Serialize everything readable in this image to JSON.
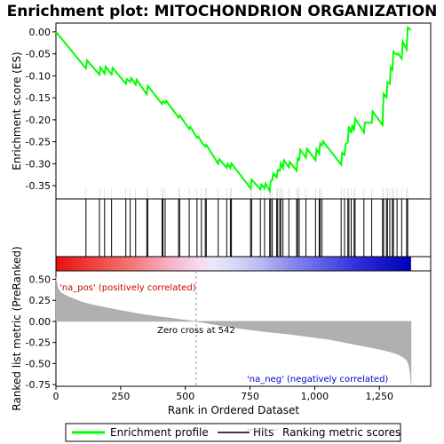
{
  "chart_data": {
    "type": "line",
    "title": "Enrichment plot: MITOCHONDRION ORGANIZATION",
    "top_panel": {
      "ylabel": "Enrichment score (ES)",
      "ylim": [
        -0.38,
        0.02
      ],
      "yticks": [
        "0.00",
        "-0.05",
        "-0.10",
        "-0.15",
        "-0.20",
        "-0.25",
        "-0.30",
        "-0.35"
      ],
      "ytick_values": [
        0.0,
        -0.05,
        -0.1,
        -0.15,
        -0.2,
        -0.25,
        -0.3,
        -0.35
      ],
      "series": [
        {
          "name": "Enrichment profile",
          "color": "#00ff00",
          "x": [
            0,
            116,
            120,
            168,
            172,
            188,
            192,
            215,
            219,
            270,
            274,
            287,
            291,
            308,
            312,
            351,
            355,
            410,
            414,
            422,
            426,
            474,
            478,
            515,
            519,
            545,
            550,
            562,
            566,
            577,
            581,
            627,
            631,
            660,
            664,
            674,
            678,
            752,
            756,
            790,
            794,
            806,
            810,
            826,
            830,
            836,
            840,
            853,
            857,
            865,
            869,
            877,
            881,
            900,
            904,
            930,
            934,
            940,
            944,
            966,
            970,
            1003,
            1007,
            1017,
            1021,
            1028,
            1032,
            1102,
            1106,
            1115,
            1119,
            1128,
            1132,
            1141,
            1145,
            1152,
            1156,
            1190,
            1194,
            1220,
            1224,
            1262,
            1266,
            1277,
            1281,
            1290,
            1294,
            1300,
            1304,
            1318,
            1322,
            1336,
            1340,
            1355,
            1359,
            1372
          ],
          "y": [
            0.0,
            -0.083,
            -0.065,
            -0.097,
            -0.081,
            -0.095,
            -0.079,
            -0.097,
            -0.082,
            -0.118,
            -0.107,
            -0.114,
            -0.105,
            -0.12,
            -0.109,
            -0.142,
            -0.123,
            -0.164,
            -0.158,
            -0.162,
            -0.157,
            -0.195,
            -0.19,
            -0.221,
            -0.216,
            -0.241,
            -0.238,
            -0.25,
            -0.254,
            -0.261,
            -0.257,
            -0.3,
            -0.29,
            -0.309,
            -0.3,
            -0.31,
            -0.299,
            -0.356,
            -0.336,
            -0.358,
            -0.347,
            -0.356,
            -0.345,
            -0.362,
            -0.339,
            -0.337,
            -0.322,
            -0.331,
            -0.314,
            -0.316,
            -0.299,
            -0.31,
            -0.292,
            -0.308,
            -0.296,
            -0.316,
            -0.288,
            -0.291,
            -0.268,
            -0.286,
            -0.266,
            -0.292,
            -0.267,
            -0.277,
            -0.254,
            -0.258,
            -0.249,
            -0.302,
            -0.275,
            -0.28,
            -0.256,
            -0.251,
            -0.215,
            -0.23,
            -0.212,
            -0.225,
            -0.197,
            -0.229,
            -0.206,
            -0.207,
            -0.181,
            -0.212,
            -0.141,
            -0.149,
            -0.115,
            -0.118,
            -0.081,
            -0.086,
            -0.045,
            -0.052,
            -0.049,
            -0.061,
            -0.022,
            -0.04,
            0.01,
            0.004
          ]
        }
      ],
      "hits": [
        116,
        168,
        188,
        215,
        270,
        287,
        308,
        351,
        355,
        410,
        414,
        422,
        474,
        478,
        515,
        545,
        562,
        577,
        581,
        627,
        660,
        674,
        678,
        752,
        756,
        790,
        806,
        826,
        830,
        836,
        853,
        857,
        865,
        869,
        877,
        900,
        930,
        934,
        940,
        966,
        1003,
        1017,
        1021,
        1028,
        1102,
        1115,
        1128,
        1132,
        1141,
        1152,
        1156,
        1190,
        1220,
        1262,
        1266,
        1277,
        1281,
        1290,
        1300,
        1304,
        1318,
        1336,
        1355,
        1359
      ]
    },
    "bottom_panel": {
      "ylabel": "Ranked list metric (PreRanked)",
      "xlabel": "Rank in Ordered Dataset",
      "ylim": [
        -0.77,
        0.6
      ],
      "yticks": [
        "0.50",
        "0.25",
        "0.00",
        "-0.25",
        "-0.50",
        "-0.75"
      ],
      "ytick_values": [
        0.5,
        0.25,
        0.0,
        -0.25,
        -0.5,
        -0.75
      ],
      "xticks": [
        "0",
        "250",
        "500",
        "750",
        "1,000",
        "1,250"
      ],
      "xtick_values": [
        0,
        250,
        500,
        750,
        1000,
        1250
      ],
      "xlim": [
        0,
        1448
      ],
      "metric_profile": {
        "x": [
          0,
          3,
          8,
          20,
          50,
          100,
          150,
          200,
          250,
          300,
          350,
          400,
          450,
          500,
          542,
          600,
          650,
          700,
          750,
          800,
          850,
          900,
          950,
          1000,
          1050,
          1100,
          1150,
          1200,
          1250,
          1290,
          1320,
          1340,
          1355,
          1362,
          1366,
          1369,
          1372
        ],
        "y": [
          0.52,
          0.46,
          0.39,
          0.34,
          0.29,
          0.23,
          0.19,
          0.16,
          0.13,
          0.1,
          0.075,
          0.055,
          0.035,
          0.015,
          0.0,
          -0.03,
          -0.055,
          -0.08,
          -0.1,
          -0.12,
          -0.135,
          -0.15,
          -0.17,
          -0.19,
          -0.21,
          -0.24,
          -0.27,
          -0.3,
          -0.33,
          -0.36,
          -0.39,
          -0.42,
          -0.46,
          -0.5,
          -0.55,
          -0.62,
          -0.75
        ]
      },
      "annotations": {
        "pos": "'na_pos' (positively correlated)",
        "neg": "'na_neg' (negatively correlated)",
        "zero": "Zero cross at 542"
      },
      "zero_cross": 542
    },
    "rank_bar": {
      "n": 1372,
      "stops": [
        {
          "at": 0,
          "color": "#e81010"
        },
        {
          "at": 0.12,
          "color": "#f04848"
        },
        {
          "at": 0.22,
          "color": "#f47a7a"
        },
        {
          "at": 0.32,
          "color": "#f8b0c8"
        },
        {
          "at": 0.4,
          "color": "#f6d8f0"
        },
        {
          "at": 0.44,
          "color": "#ece8f8"
        },
        {
          "at": 0.5,
          "color": "#d8d8fa"
        },
        {
          "at": 0.58,
          "color": "#b8b8f4"
        },
        {
          "at": 0.66,
          "color": "#8a8aee"
        },
        {
          "at": 0.76,
          "color": "#5a5ae4"
        },
        {
          "at": 0.86,
          "color": "#2a2ad6"
        },
        {
          "at": 1.0,
          "color": "#0000b8"
        }
      ]
    },
    "legend": [
      {
        "label": "Enrichment profile",
        "color": "#00ff00"
      },
      {
        "label": "Hits",
        "color": "#000000"
      },
      {
        "label": "Ranking metric scores",
        "color": "#c0c0c0"
      }
    ]
  }
}
